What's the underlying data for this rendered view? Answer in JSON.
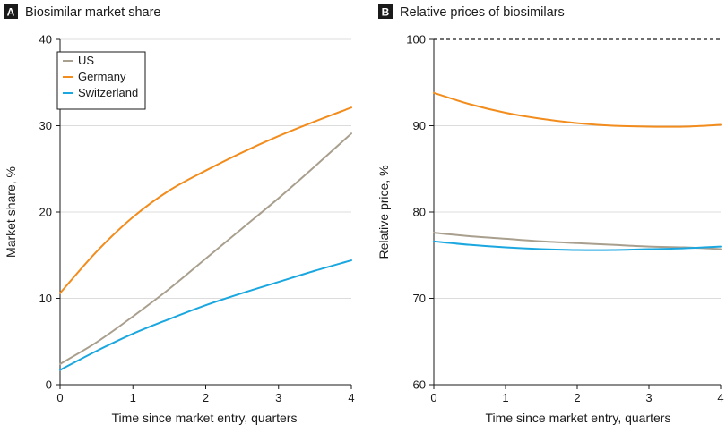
{
  "chart_data": [
    {
      "type": "line",
      "panel": "A",
      "title": "Biosimilar market share",
      "xlabel": "Time since market entry, quarters",
      "ylabel": "Market share, %",
      "xlim": [
        0,
        4
      ],
      "ylim": [
        0,
        40
      ],
      "xticks": [
        0,
        1,
        2,
        3,
        4
      ],
      "yticks": [
        0,
        10,
        20,
        30,
        40
      ],
      "legend": "top-left",
      "series": [
        {
          "name": "US",
          "color": "#a99f8e",
          "x": [
            0,
            0.5,
            1,
            1.5,
            2,
            2.5,
            3,
            3.5,
            4
          ],
          "y": [
            2.4,
            4.9,
            7.9,
            11.1,
            14.6,
            18.1,
            21.6,
            25.3,
            29.1
          ]
        },
        {
          "name": "Germany",
          "color": "#f28c1c",
          "x": [
            0,
            0.5,
            1,
            1.5,
            2,
            2.5,
            3,
            3.5,
            4
          ],
          "y": [
            10.6,
            15.4,
            19.4,
            22.5,
            24.8,
            26.9,
            28.8,
            30.5,
            32.1
          ]
        },
        {
          "name": "Switzerland",
          "color": "#1aa7e0",
          "x": [
            0,
            0.5,
            1,
            1.5,
            2,
            2.5,
            3,
            3.5,
            4
          ],
          "y": [
            1.7,
            3.9,
            5.9,
            7.6,
            9.2,
            10.6,
            11.9,
            13.2,
            14.4
          ]
        }
      ]
    },
    {
      "type": "line",
      "panel": "B",
      "title": "Relative prices of biosimilars",
      "xlabel": "Time since market entry, quarters",
      "ylabel": "Relative price, %",
      "xlim": [
        0,
        4
      ],
      "ylim": [
        60,
        100
      ],
      "xticks": [
        0,
        1,
        2,
        3,
        4
      ],
      "yticks": [
        60,
        70,
        80,
        90,
        100
      ],
      "reference_line": {
        "y": 100,
        "style": "dashed"
      },
      "series": [
        {
          "name": "US",
          "color": "#a99f8e",
          "x": [
            0,
            0.5,
            1,
            1.5,
            2,
            2.5,
            3,
            3.5,
            4
          ],
          "y": [
            77.6,
            77.2,
            76.9,
            76.6,
            76.4,
            76.2,
            76.0,
            75.9,
            75.7
          ]
        },
        {
          "name": "Germany",
          "color": "#f28c1c",
          "x": [
            0,
            0.5,
            1,
            1.5,
            2,
            2.5,
            3,
            3.5,
            4
          ],
          "y": [
            93.8,
            92.5,
            91.5,
            90.8,
            90.3,
            90.0,
            89.9,
            89.9,
            90.1
          ]
        },
        {
          "name": "Switzerland",
          "color": "#1aa7e0",
          "x": [
            0,
            0.5,
            1,
            1.5,
            2,
            2.5,
            3,
            3.5,
            4
          ],
          "y": [
            76.6,
            76.2,
            75.9,
            75.7,
            75.6,
            75.6,
            75.7,
            75.8,
            76.0
          ]
        }
      ]
    }
  ]
}
